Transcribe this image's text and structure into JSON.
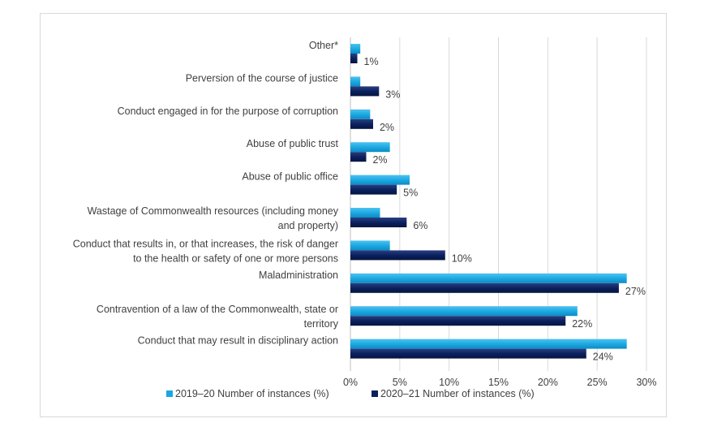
{
  "chart_data": {
    "type": "bar",
    "orientation": "horizontal",
    "categories": [
      [
        "Other*"
      ],
      [
        "Perversion of the course of justice"
      ],
      [
        "Conduct engaged in for the purpose of corruption"
      ],
      [
        "Abuse of public trust"
      ],
      [
        "Abuse of public office"
      ],
      [
        "Wastage of Commonwealth resources (including money",
        "and property)"
      ],
      [
        "Conduct that results in, or that increases, the risk of danger",
        "to the health or safety of one or more persons"
      ],
      [
        "Maladministration"
      ],
      [
        "Contravention of a law of the Commonwealth, state or",
        "territory"
      ],
      [
        "Conduct that may result in disciplinary action"
      ]
    ],
    "series": [
      {
        "name": "2019–20 Number of instances (%)",
        "color": "#1aa7e0",
        "values": [
          1,
          1,
          2,
          4,
          6,
          3,
          4,
          28,
          23,
          28
        ]
      },
      {
        "name": "2020–21 Number of instances (%)",
        "color": "#0a1f5c",
        "values": [
          0.7,
          2.9,
          2.3,
          1.6,
          4.7,
          5.7,
          9.6,
          27.2,
          21.8,
          23.9
        ],
        "labels": [
          "1%",
          "3%",
          "2%",
          "2%",
          "5%",
          "6%",
          "10%",
          "27%",
          "22%",
          "24%"
        ]
      }
    ],
    "xlim": [
      0,
      30
    ],
    "xticks": [
      "0%",
      "5%",
      "10%",
      "15%",
      "20%",
      "25%",
      "30%"
    ],
    "grid": "vertical",
    "legend": "bottom"
  }
}
